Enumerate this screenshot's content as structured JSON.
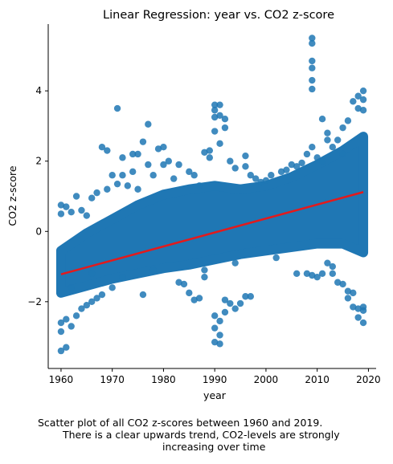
{
  "chart_data": {
    "type": "scatter",
    "title": "Linear Regression: year vs. CO2 z-score",
    "xlabel": "year",
    "ylabel": "CO2 z-score",
    "xlim": [
      1957.5,
      2021.5
    ],
    "ylim": [
      -3.9,
      5.9
    ],
    "xticks": [
      1960,
      1970,
      1980,
      1990,
      2000,
      2010,
      2020
    ],
    "yticks": [
      -2,
      0,
      2,
      4
    ],
    "grid": false,
    "legend": "none",
    "point_color": "#1f77b4",
    "line_color": "#e31a1c",
    "regression_line": {
      "x": [
        1960,
        2019
      ],
      "y": [
        -1.22,
        1.12
      ]
    },
    "band_lower": [
      [
        1960,
        -1.75
      ],
      [
        1965,
        -1.55
      ],
      [
        1970,
        -1.35
      ],
      [
        1975,
        -1.2
      ],
      [
        1980,
        -1.05
      ],
      [
        1985,
        -0.95
      ],
      [
        1990,
        -0.8
      ],
      [
        1995,
        -0.65
      ],
      [
        2000,
        -0.55
      ],
      [
        2005,
        -0.45
      ],
      [
        2010,
        -0.35
      ],
      [
        2015,
        -0.35
      ],
      [
        2019,
        -0.6
      ]
    ],
    "band_upper": [
      [
        1960,
        -0.55
      ],
      [
        1965,
        -0.05
      ],
      [
        1970,
        0.35
      ],
      [
        1975,
        0.75
      ],
      [
        1980,
        1.05
      ],
      [
        1985,
        1.2
      ],
      [
        1990,
        1.3
      ],
      [
        1995,
        1.2
      ],
      [
        2000,
        1.3
      ],
      [
        2005,
        1.55
      ],
      [
        2010,
        1.9
      ],
      [
        2015,
        2.3
      ],
      [
        2019,
        2.7
      ]
    ],
    "points": [
      [
        1960,
        -3.4
      ],
      [
        1960,
        -2.85
      ],
      [
        1960,
        -2.6
      ],
      [
        1960,
        0.75
      ],
      [
        1960,
        0.5
      ],
      [
        1961,
        -3.3
      ],
      [
        1961,
        -2.5
      ],
      [
        1961,
        0.7
      ],
      [
        1962,
        -2.7
      ],
      [
        1962,
        0.55
      ],
      [
        1963,
        1.0
      ],
      [
        1963,
        -2.4
      ],
      [
        1964,
        0.6
      ],
      [
        1964,
        -2.2
      ],
      [
        1965,
        0.45
      ],
      [
        1965,
        -2.1
      ],
      [
        1966,
        0.95
      ],
      [
        1966,
        -2.0
      ],
      [
        1967,
        1.1
      ],
      [
        1967,
        -1.9
      ],
      [
        1968,
        2.4
      ],
      [
        1968,
        -1.8
      ],
      [
        1969,
        2.3
      ],
      [
        1969,
        1.2
      ],
      [
        1970,
        1.6
      ],
      [
        1970,
        -1.6
      ],
      [
        1971,
        3.5
      ],
      [
        1971,
        1.35
      ],
      [
        1972,
        2.1
      ],
      [
        1972,
        1.6
      ],
      [
        1973,
        1.3
      ],
      [
        1974,
        2.2
      ],
      [
        1974,
        1.7
      ],
      [
        1975,
        2.2
      ],
      [
        1975,
        1.2
      ],
      [
        1976,
        2.55
      ],
      [
        1976,
        -1.8
      ],
      [
        1977,
        3.05
      ],
      [
        1977,
        1.9
      ],
      [
        1978,
        1.6
      ],
      [
        1979,
        2.35
      ],
      [
        1980,
        2.4
      ],
      [
        1980,
        1.9
      ],
      [
        1981,
        2.0
      ],
      [
        1982,
        1.5
      ],
      [
        1983,
        1.9
      ],
      [
        1984,
        -1.5
      ],
      [
        1985,
        1.7
      ],
      [
        1985,
        -1.75
      ],
      [
        1986,
        -1.95
      ],
      [
        1986,
        1.6
      ],
      [
        1987,
        1.3
      ],
      [
        1987,
        -1.9
      ],
      [
        1988,
        2.25
      ],
      [
        1988,
        -1.3
      ],
      [
        1989,
        2.1
      ],
      [
        1989,
        2.3
      ],
      [
        1990,
        2.85
      ],
      [
        1990,
        3.25
      ],
      [
        1990,
        3.45
      ],
      [
        1990,
        3.6
      ],
      [
        1990,
        -2.4
      ],
      [
        1990,
        -2.75
      ],
      [
        1990,
        -3.15
      ],
      [
        1991,
        3.6
      ],
      [
        1991,
        3.3
      ],
      [
        1991,
        2.5
      ],
      [
        1991,
        -2.55
      ],
      [
        1991,
        -2.95
      ],
      [
        1991,
        -3.2
      ],
      [
        1992,
        3.2
      ],
      [
        1992,
        2.95
      ],
      [
        1992,
        -1.95
      ],
      [
        1992,
        -2.3
      ],
      [
        1993,
        2.0
      ],
      [
        1993,
        -2.05
      ],
      [
        1994,
        1.8
      ],
      [
        1994,
        -2.2
      ],
      [
        1995,
        -2.05
      ],
      [
        1996,
        2.15
      ],
      [
        1996,
        1.85
      ],
      [
        1996,
        -1.85
      ],
      [
        1997,
        -1.85
      ],
      [
        1998,
        1.5
      ],
      [
        1999,
        1.4
      ],
      [
        2001,
        1.6
      ],
      [
        2003,
        1.7
      ],
      [
        2005,
        1.9
      ],
      [
        2006,
        -1.2
      ],
      [
        2007,
        1.95
      ],
      [
        2008,
        -1.2
      ],
      [
        2008,
        2.2
      ],
      [
        2009,
        5.5
      ],
      [
        2009,
        5.35
      ],
      [
        2009,
        4.85
      ],
      [
        2009,
        4.65
      ],
      [
        2009,
        4.3
      ],
      [
        2009,
        4.05
      ],
      [
        2009,
        2.4
      ],
      [
        2009,
        -1.25
      ],
      [
        2010,
        2.1
      ],
      [
        2010,
        -1.3
      ],
      [
        2011,
        3.2
      ],
      [
        2011,
        -1.2
      ],
      [
        2012,
        2.8
      ],
      [
        2012,
        2.6
      ],
      [
        2012,
        -0.9
      ],
      [
        2013,
        2.4
      ],
      [
        2013,
        -1.2
      ],
      [
        2014,
        2.6
      ],
      [
        2014,
        -1.45
      ],
      [
        2015,
        2.95
      ],
      [
        2015,
        -1.5
      ],
      [
        2016,
        3.15
      ],
      [
        2016,
        -1.9
      ],
      [
        2016,
        -1.7
      ],
      [
        2017,
        3.7
      ],
      [
        2017,
        -2.15
      ],
      [
        2017,
        -1.75
      ],
      [
        2018,
        3.85
      ],
      [
        2018,
        3.5
      ],
      [
        2018,
        -2.45
      ],
      [
        2018,
        -2.2
      ],
      [
        2019,
        4.0
      ],
      [
        2019,
        3.75
      ],
      [
        2019,
        3.45
      ],
      [
        2019,
        -2.6
      ],
      [
        2019,
        -2.25
      ],
      [
        2019,
        -2.15
      ],
      [
        1962,
        -1.6
      ],
      [
        1966,
        -1.2
      ],
      [
        1972,
        -1.3
      ],
      [
        1978,
        -1.1
      ],
      [
        1983,
        -1.45
      ],
      [
        1988,
        -1.1
      ],
      [
        1994,
        -0.9
      ],
      [
        1997,
        1.6
      ],
      [
        2000,
        1.45
      ],
      [
        2002,
        -0.75
      ],
      [
        2004,
        1.75
      ],
      [
        2006,
        1.85
      ],
      [
        2011,
        2.0
      ],
      [
        2013,
        -1.0
      ],
      [
        2015,
        2.2
      ]
    ]
  },
  "caption": {
    "line1": "Scatter plot of all CO2 z-scores between 1960 and 2019.",
    "line2": "There is a clear upwards trend, CO2-levels are strongly",
    "line3": "increasing over time"
  }
}
